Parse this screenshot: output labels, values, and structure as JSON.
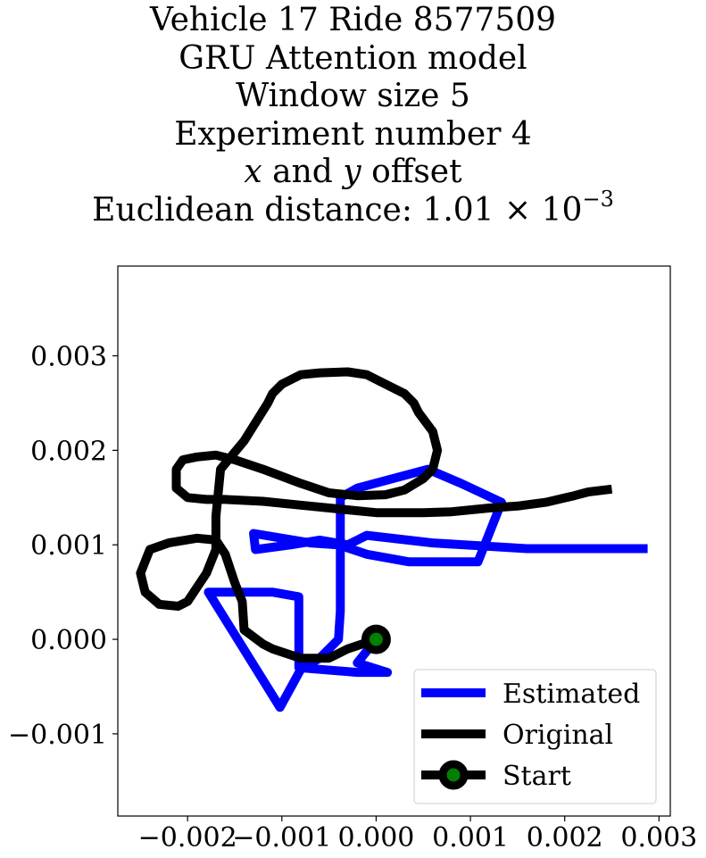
{
  "chart_data": {
    "type": "line",
    "title": {
      "line1": "Vehicle 17 Ride 8577509",
      "line2": "GRU Attention model",
      "line3": "Window size 5",
      "line4": "Experiment number 4",
      "line5_var_x": "x",
      "line5_mid": " and ",
      "line5_var_y": "y",
      "line5_tail": " offset",
      "line6_prefix": "Euclidean distance: 1.01",
      "line6_times": " × ",
      "line6_base": "10",
      "line6_exp": "−3"
    },
    "xlim": [
      -0.00274,
      0.00312
    ],
    "ylim": [
      -0.00187,
      0.00395
    ],
    "x_ticks": [
      {
        "value": -0.002,
        "label": "−0.002"
      },
      {
        "value": -0.001,
        "label": "−0.001"
      },
      {
        "value": 0.0,
        "label": "0.000"
      },
      {
        "value": 0.001,
        "label": "0.001"
      },
      {
        "value": 0.002,
        "label": "0.002"
      },
      {
        "value": 0.003,
        "label": "0.003"
      }
    ],
    "y_ticks": [
      {
        "value": -0.001,
        "label": "−0.001"
      },
      {
        "value": 0.0,
        "label": "0.000"
      },
      {
        "value": 0.001,
        "label": "0.001"
      },
      {
        "value": 0.002,
        "label": "0.002"
      },
      {
        "value": 0.003,
        "label": "0.003"
      }
    ],
    "grid": false,
    "legend_position": "lower-right",
    "series": [
      {
        "name": "Estimated",
        "color": "#0000ff",
        "points": [
          [
            0.0,
            0.0
          ],
          [
            -0.0002,
            -0.00025
          ],
          [
            0.00012,
            -0.00035
          ],
          [
            -0.0002,
            -0.00035
          ],
          [
            -0.00082,
            -0.0003
          ],
          [
            -0.00082,
            0.00045
          ],
          [
            -0.0011,
            0.0005
          ],
          [
            -0.00178,
            0.0005
          ],
          [
            -0.00102,
            -0.00072
          ],
          [
            -0.0008,
            -0.00032
          ],
          [
            -0.0006,
            -0.0002
          ],
          [
            -0.0004,
            0.0
          ],
          [
            -0.00038,
            0.0003
          ],
          [
            -0.00038,
            0.0009
          ],
          [
            -0.00038,
            0.0015
          ],
          [
            -0.0002,
            0.0016
          ],
          [
            0.00055,
            0.0018
          ],
          [
            0.0009,
            0.00165
          ],
          [
            0.00133,
            0.00145
          ],
          [
            0.00108,
            0.00082
          ],
          [
            0.0008,
            0.00082
          ],
          [
            0.00035,
            0.00082
          ],
          [
            -0.0001,
            0.0009
          ],
          [
            -0.0004,
            0.001
          ],
          [
            -0.0007,
            0.00102
          ],
          [
            -0.0013,
            0.00112
          ],
          [
            -0.00128,
            0.00095
          ],
          [
            -0.0009,
            0.001
          ],
          [
            -0.0006,
            0.00105
          ],
          [
            -0.0003,
            0.001
          ],
          [
            -0.0001,
            0.0011
          ],
          [
            0.0006,
            0.00102
          ],
          [
            0.0016,
            0.00096
          ],
          [
            0.00288,
            0.00096
          ]
        ]
      },
      {
        "name": "Original",
        "color": "#000000",
        "points": [
          [
            0.0,
            0.0
          ],
          [
            -0.0003,
            -0.0001
          ],
          [
            -0.0005,
            -0.0002
          ],
          [
            -0.0008,
            -0.0002
          ],
          [
            -0.0011,
            -0.0001
          ],
          [
            -0.0012,
            -5e-05
          ],
          [
            -0.0014,
            0.0001
          ],
          [
            -0.00142,
            0.0004
          ],
          [
            -0.0015,
            0.0006
          ],
          [
            -0.0016,
            0.0009
          ],
          [
            -0.0017,
            0.00105
          ],
          [
            -0.0019,
            0.00107
          ],
          [
            -0.0022,
            0.00102
          ],
          [
            -0.0024,
            0.00095
          ],
          [
            -0.0025,
            0.0007
          ],
          [
            -0.00245,
            0.0005
          ],
          [
            -0.0023,
            0.00037
          ],
          [
            -0.0021,
            0.00035
          ],
          [
            -0.002,
            0.0004
          ],
          [
            -0.0018,
            0.0007
          ],
          [
            -0.0017,
            0.00095
          ],
          [
            -0.0017,
            0.0013
          ],
          [
            -0.00165,
            0.0018
          ],
          [
            -0.0014,
            0.0021
          ],
          [
            -0.00115,
            0.0025
          ],
          [
            -0.0011,
            0.0026
          ],
          [
            -0.001,
            0.0027
          ],
          [
            -0.0008,
            0.0028
          ],
          [
            -0.0006,
            0.00282
          ],
          [
            -0.0003,
            0.00283
          ],
          [
            -0.0001,
            0.0028
          ],
          [
            0.0001,
            0.0027
          ],
          [
            0.0003,
            0.0026
          ],
          [
            0.0004,
            0.0025
          ],
          [
            0.00045,
            0.0024
          ],
          [
            0.0006,
            0.0022
          ],
          [
            0.00065,
            0.002
          ],
          [
            0.0006,
            0.0018
          ],
          [
            0.0005,
            0.0017
          ],
          [
            0.0003,
            0.00158
          ],
          [
            0.0001,
            0.00153
          ],
          [
            -0.0002,
            0.00152
          ],
          [
            -0.0005,
            0.00155
          ],
          [
            -0.0008,
            0.00165
          ],
          [
            -0.0012,
            0.0018
          ],
          [
            -0.0015,
            0.0019
          ],
          [
            -0.0017,
            0.00195
          ],
          [
            -0.0019,
            0.00193
          ],
          [
            -0.00205,
            0.0019
          ],
          [
            -0.00212,
            0.0018
          ],
          [
            -0.00212,
            0.0016
          ],
          [
            -0.002,
            0.0015
          ],
          [
            -0.0018,
            0.00148
          ],
          [
            -0.0016,
            0.00148
          ],
          [
            -0.0012,
            0.00146
          ],
          [
            -0.0008,
            0.00142
          ],
          [
            -0.0004,
            0.00138
          ],
          [
            0.0,
            0.00134
          ],
          [
            0.0005,
            0.00134
          ],
          [
            0.0008,
            0.00135
          ],
          [
            0.0012,
            0.00139
          ],
          [
            0.0015,
            0.00141
          ],
          [
            0.0018,
            0.00145
          ],
          [
            0.0021,
            0.00152
          ],
          [
            0.00225,
            0.00156
          ],
          [
            0.0025,
            0.00159
          ]
        ]
      }
    ],
    "start_marker": {
      "name": "Start",
      "point": [
        0.0,
        0.0
      ],
      "edge_color": "#000000",
      "face_color": "#008000"
    },
    "legend": [
      {
        "label": "Estimated",
        "kind": "line",
        "color": "#0000ff"
      },
      {
        "label": "Original",
        "kind": "line",
        "color": "#000000"
      },
      {
        "label": "Start",
        "kind": "marker",
        "color": "#000000",
        "face_color": "#008000"
      }
    ]
  }
}
